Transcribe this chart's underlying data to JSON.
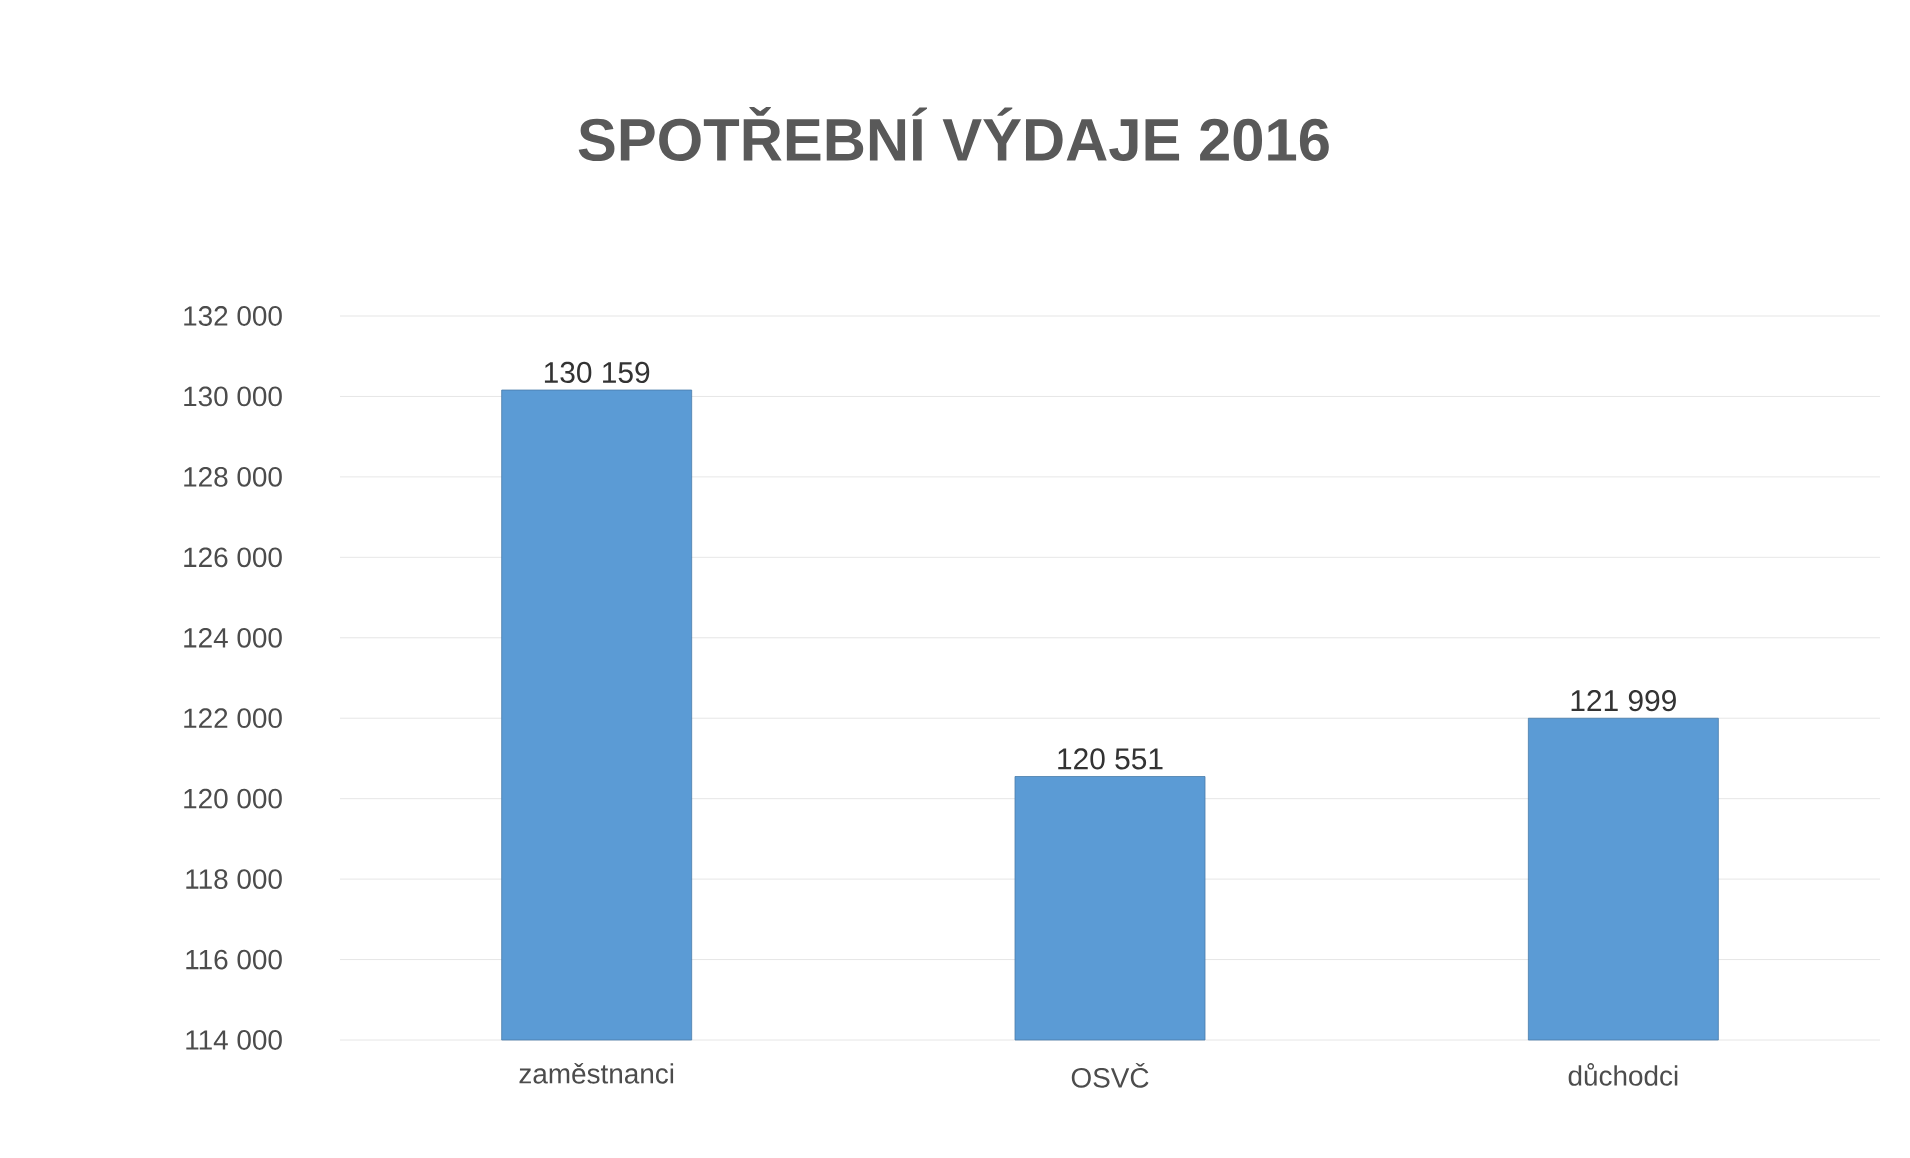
{
  "chart_data": {
    "type": "bar",
    "title": "SPOTŘEBNÍ VÝDAJE 2016",
    "categories": [
      "zaměstnanci",
      "OSVČ",
      "důchodci"
    ],
    "values": [
      130159,
      120551,
      121999
    ],
    "value_labels": [
      "130 159",
      "120 551",
      "121 999"
    ],
    "color": "#5b9bd5",
    "ylim": [
      114000,
      132000
    ],
    "yticks": [
      {
        "value": 114000,
        "label": "114 000"
      },
      {
        "value": 116000,
        "label": "116 000"
      },
      {
        "value": 118000,
        "label": "118 000"
      },
      {
        "value": 120000,
        "label": "120 000"
      },
      {
        "value": 122000,
        "label": "122 000"
      },
      {
        "value": 124000,
        "label": "124 000"
      },
      {
        "value": 126000,
        "label": "126 000"
      },
      {
        "value": 128000,
        "label": "128 000"
      },
      {
        "value": 130000,
        "label": "130 000"
      },
      {
        "value": 132000,
        "label": "132 000"
      }
    ],
    "grid": "y"
  }
}
